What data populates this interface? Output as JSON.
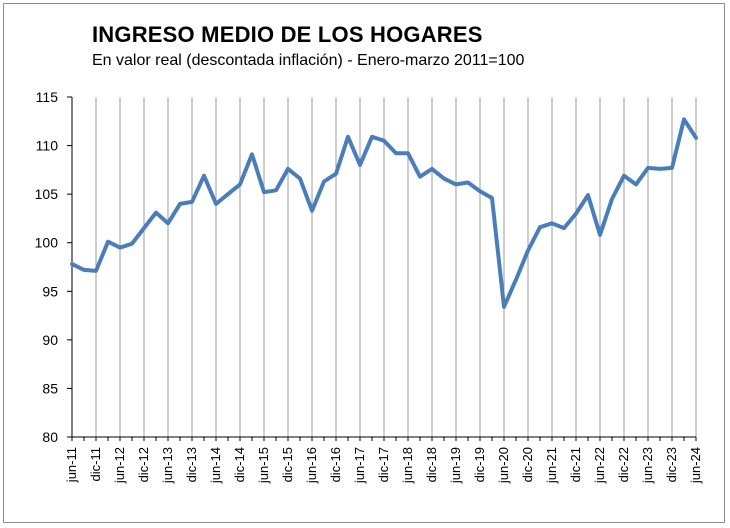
{
  "chart_data": {
    "type": "line",
    "title": "INGRESO MEDIO DE LOS HOGARES",
    "subtitle": "En valor real (descontada inflación) - Enero-marzo 2011=100",
    "xlabel": "",
    "ylabel": "",
    "ylim": [
      80,
      115
    ],
    "yticks": [
      80,
      85,
      90,
      95,
      100,
      105,
      110,
      115
    ],
    "grid": "vertical",
    "series": [
      {
        "name": "Ingreso medio de los hogares",
        "color": "#4a7ebb",
        "values": [
          97.8,
          97.2,
          97.1,
          100.1,
          99.5,
          99.9,
          101.5,
          103.1,
          102.0,
          104.0,
          104.2,
          106.9,
          104.0,
          105.0,
          106.0,
          109.1,
          105.2,
          105.4,
          107.6,
          106.6,
          103.3,
          106.3,
          107.1,
          110.9,
          108.0,
          110.9,
          110.5,
          109.2,
          109.2,
          106.8,
          107.6,
          106.6,
          106.0,
          106.2,
          105.3,
          104.6,
          93.4,
          96.2,
          99.2,
          101.6,
          102.0,
          101.5,
          103.0,
          104.9,
          100.8,
          104.5,
          106.9,
          106.0,
          107.7,
          107.6,
          107.7,
          112.7,
          110.8
        ]
      }
    ],
    "x_tick_labels": [
      "jun-11",
      "dic-11",
      "jun-12",
      "dic-12",
      "jun-13",
      "dic-13",
      "jun-14",
      "dic-14",
      "jun-15",
      "dic-15",
      "jun-16",
      "dic-16",
      "jun-17",
      "dic-17",
      "jun-18",
      "dic-18",
      "jun-19",
      "dic-19",
      "jun-20",
      "dic-20",
      "jun-21",
      "dic-21",
      "jun-22",
      "dic-22",
      "jun-23",
      "dic-23",
      "jun-24"
    ]
  }
}
